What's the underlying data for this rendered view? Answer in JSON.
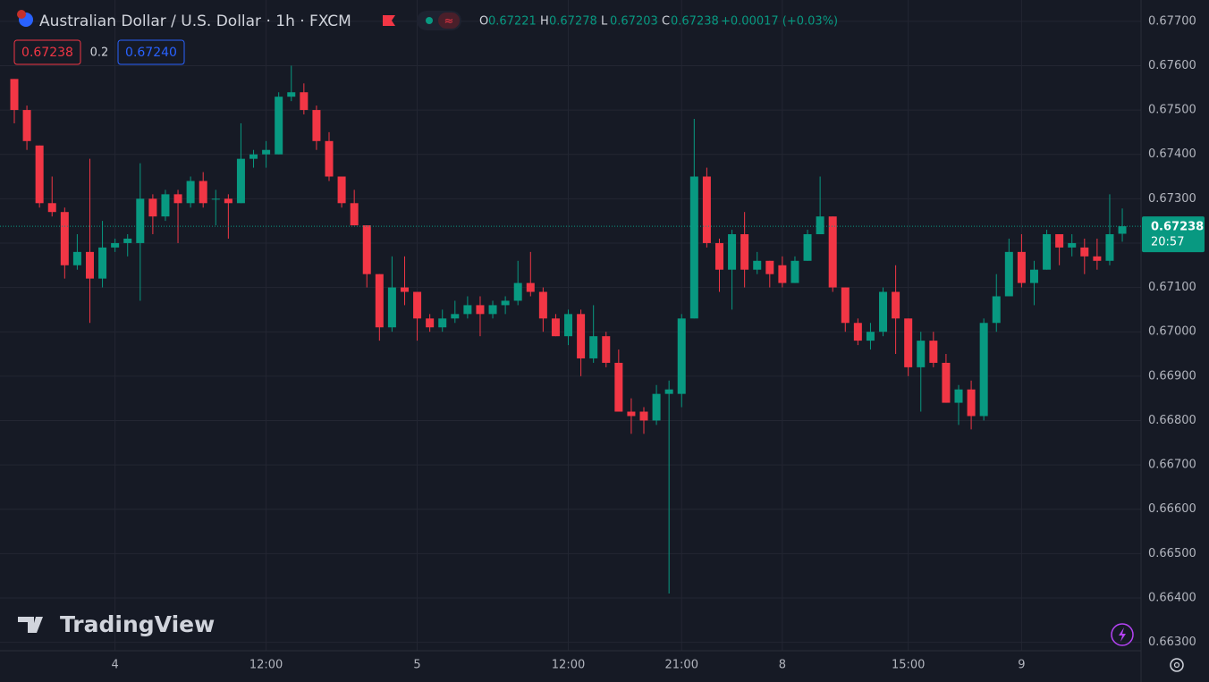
{
  "chart_data": {
    "type": "candlestick",
    "title": "Australian Dollar / U.S. Dollar · 1h · FXCM",
    "legend_labels": {
      "open": "O",
      "high": "H",
      "low": "L",
      "close": "C"
    },
    "change": "+0.00017 (+0.03%)",
    "bid_box": "0.67238",
    "spread": "0.2",
    "ask_box": "0.67240",
    "countdown": "20:57",
    "watermark": "TradingView",
    "up_color": "#089981",
    "down_color": "#f23645",
    "grid": true,
    "categories": [
      null,
      null,
      null,
      null,
      null,
      null,
      null,
      null,
      "4",
      null,
      null,
      null,
      null,
      null,
      null,
      null,
      null,
      null,
      null,
      null,
      "12:00",
      null,
      null,
      null,
      null,
      null,
      null,
      null,
      null,
      null,
      null,
      null,
      "5",
      null,
      null,
      null,
      null,
      null,
      null,
      null,
      null,
      null,
      null,
      null,
      "12:00",
      null,
      null,
      null,
      null,
      null,
      null,
      null,
      null,
      "21:00",
      null,
      null,
      null,
      null,
      null,
      null,
      null,
      "8",
      null,
      null,
      null,
      null,
      null,
      null,
      null,
      null,
      null,
      "15:00",
      null,
      null,
      null,
      null,
      null,
      null,
      null,
      null,
      "9",
      null,
      null,
      null,
      null,
      null,
      null,
      null,
      null
    ],
    "open": [
      0.6757,
      0.675,
      0.6742,
      0.6729,
      0.6727,
      0.6715,
      0.6718,
      0.6712,
      0.6719,
      0.672,
      0.672,
      0.673,
      0.6726,
      0.6731,
      0.6729,
      0.6734,
      0.673,
      0.673,
      0.6729,
      0.6739,
      0.674,
      0.674,
      0.6753,
      0.6754,
      0.675,
      0.6743,
      0.6735,
      0.6729,
      0.6724,
      0.6713,
      0.6701,
      0.671,
      0.6709,
      0.6703,
      0.6701,
      0.6703,
      0.6704,
      0.6706,
      0.6704,
      0.6706,
      0.6707,
      0.6711,
      0.6709,
      0.6703,
      0.6699,
      0.6704,
      0.6694,
      0.6699,
      0.6693,
      0.6682,
      0.6682,
      0.668,
      0.6686,
      0.6686,
      0.6703,
      0.6735,
      0.672,
      0.6714,
      0.6722,
      0.6714,
      0.6716,
      0.6715,
      0.6711,
      0.6716,
      0.6722,
      0.6726,
      0.671,
      0.6702,
      0.6698,
      0.67,
      0.6709,
      0.6703,
      0.6692,
      0.6698,
      0.6693,
      0.6684,
      0.6687,
      0.6681,
      0.6702,
      0.6708,
      0.6718,
      0.6711,
      0.6714,
      0.6722,
      0.6719,
      0.6719,
      0.6717,
      0.6716,
      0.67221
    ],
    "high": [
      0.6757,
      0.6751,
      0.6742,
      0.6735,
      0.6728,
      0.6722,
      0.6739,
      0.6725,
      0.6721,
      0.6722,
      0.6738,
      0.6731,
      0.6732,
      0.6732,
      0.6735,
      0.6736,
      0.6732,
      0.6731,
      0.6747,
      0.6741,
      0.6743,
      0.6754,
      0.676,
      0.6756,
      0.6751,
      0.6745,
      0.6735,
      0.6732,
      0.6724,
      0.6713,
      0.6717,
      0.6717,
      0.6709,
      0.6704,
      0.6705,
      0.6707,
      0.6708,
      0.6708,
      0.6707,
      0.6708,
      0.6716,
      0.6718,
      0.671,
      0.6704,
      0.6705,
      0.6705,
      0.6706,
      0.67,
      0.6696,
      0.6685,
      0.6683,
      0.6688,
      0.6689,
      0.6704,
      0.6748,
      0.6737,
      0.6721,
      0.6723,
      0.6727,
      0.6718,
      0.6716,
      0.6717,
      0.6717,
      0.6723,
      0.6735,
      0.6726,
      0.671,
      0.6703,
      0.6702,
      0.671,
      0.6715,
      0.6703,
      0.67,
      0.67,
      0.6695,
      0.6688,
      0.6689,
      0.6703,
      0.6713,
      0.6721,
      0.6722,
      0.6716,
      0.6723,
      0.6722,
      0.6722,
      0.6721,
      0.6721,
      0.6731,
      0.67278
    ],
    "low": [
      0.6747,
      0.6741,
      0.6728,
      0.6726,
      0.6712,
      0.6714,
      0.6702,
      0.671,
      0.6718,
      0.6717,
      0.6707,
      0.6722,
      0.6725,
      0.672,
      0.6728,
      0.6728,
      0.6724,
      0.6721,
      0.6729,
      0.6737,
      0.6737,
      0.674,
      0.6752,
      0.6749,
      0.6741,
      0.6734,
      0.6728,
      0.6724,
      0.671,
      0.6698,
      0.67,
      0.6706,
      0.6698,
      0.67,
      0.67,
      0.6702,
      0.6703,
      0.6699,
      0.6703,
      0.6704,
      0.6706,
      0.6708,
      0.67,
      0.6699,
      0.6697,
      0.669,
      0.6693,
      0.6692,
      0.6682,
      0.6677,
      0.6677,
      0.6679,
      0.6641,
      0.6683,
      0.6703,
      0.6719,
      0.6709,
      0.6705,
      0.671,
      0.6713,
      0.671,
      0.671,
      0.6711,
      0.6716,
      0.6722,
      0.6709,
      0.67,
      0.6697,
      0.6696,
      0.6699,
      0.6695,
      0.669,
      0.6682,
      0.6692,
      0.6684,
      0.6679,
      0.6678,
      0.668,
      0.67,
      0.6708,
      0.671,
      0.6706,
      0.6714,
      0.6715,
      0.6717,
      0.6713,
      0.6714,
      0.6715,
      0.67203
    ],
    "close": [
      0.675,
      0.6743,
      0.6729,
      0.6727,
      0.6715,
      0.6718,
      0.6712,
      0.6719,
      0.672,
      0.6721,
      0.673,
      0.6726,
      0.6731,
      0.6729,
      0.6734,
      0.6729,
      0.673,
      0.6729,
      0.6739,
      0.674,
      0.6741,
      0.6753,
      0.6754,
      0.675,
      0.6743,
      0.6735,
      0.6729,
      0.6724,
      0.6713,
      0.6701,
      0.671,
      0.6709,
      0.6703,
      0.6701,
      0.6703,
      0.6704,
      0.6706,
      0.6704,
      0.6706,
      0.6707,
      0.6711,
      0.6709,
      0.6703,
      0.6699,
      0.6704,
      0.6694,
      0.6699,
      0.6693,
      0.6682,
      0.6681,
      0.668,
      0.6686,
      0.6687,
      0.6703,
      0.6735,
      0.672,
      0.6714,
      0.6722,
      0.6714,
      0.6716,
      0.6713,
      0.6711,
      0.6716,
      0.6722,
      0.6726,
      0.671,
      0.6702,
      0.6698,
      0.67,
      0.6709,
      0.6703,
      0.6692,
      0.6698,
      0.6693,
      0.6684,
      0.6687,
      0.6681,
      0.6702,
      0.6708,
      0.6718,
      0.6711,
      0.6714,
      0.6722,
      0.6719,
      0.672,
      0.6717,
      0.6716,
      0.6722,
      0.67238
    ],
    "ylim": [
      0.66283,
      0.67748
    ],
    "yticks": [
      {
        "value": 0.663,
        "label": "0.66300"
      },
      {
        "value": 0.664,
        "label": "0.66400"
      },
      {
        "value": 0.665,
        "label": "0.66500"
      },
      {
        "value": 0.666,
        "label": "0.66600"
      },
      {
        "value": 0.667,
        "label": "0.66700"
      },
      {
        "value": 0.668,
        "label": "0.66800"
      },
      {
        "value": 0.669,
        "label": "0.66900"
      },
      {
        "value": 0.67,
        "label": "0.67000"
      },
      {
        "value": 0.671,
        "label": "0.67100"
      },
      {
        "value": 0.672,
        "label": "0.67200"
      },
      {
        "value": 0.673,
        "label": "0.67300"
      },
      {
        "value": 0.674,
        "label": "0.67400"
      },
      {
        "value": 0.675,
        "label": "0.67500"
      },
      {
        "value": 0.676,
        "label": "0.67600"
      },
      {
        "value": 0.677,
        "label": "0.67700"
      }
    ]
  }
}
